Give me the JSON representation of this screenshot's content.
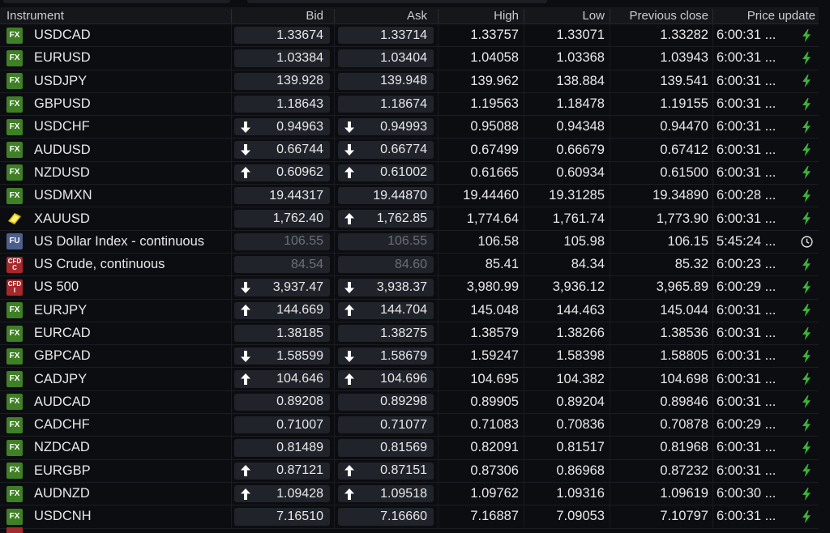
{
  "columns": {
    "instrument": "Instrument",
    "bid": "Bid",
    "ask": "Ask",
    "high": "High",
    "low": "Low",
    "prev_close": "Previous close",
    "price_update": "Price update"
  },
  "badge_labels": {
    "fx": "FX",
    "fu": "FU",
    "cfd_top": "CFD",
    "cfd_bottom": "C",
    "cfd_bottom_alt": "I"
  },
  "colors": {
    "accent_green": "#3db13a",
    "fx_badge": "#3f7f25",
    "cfd_badge": "#a5282b",
    "fu_badge": "#4a5f8c",
    "gold": "#e0c000"
  },
  "rows": [
    {
      "badge": "fx",
      "name": "USDCAD",
      "bid": "1.33674",
      "bid_dir": "",
      "ask": "1.33714",
      "ask_dir": "",
      "high": "1.33757",
      "low": "1.33071",
      "prev": "1.33282",
      "time": "6:00:31 ...",
      "status": "bolt"
    },
    {
      "badge": "fx",
      "name": "EURUSD",
      "bid": "1.03384",
      "bid_dir": "",
      "ask": "1.03404",
      "ask_dir": "",
      "high": "1.04058",
      "low": "1.03368",
      "prev": "1.03943",
      "time": "6:00:31 ...",
      "status": "bolt"
    },
    {
      "badge": "fx",
      "name": "USDJPY",
      "bid": "139.928",
      "bid_dir": "",
      "ask": "139.948",
      "ask_dir": "",
      "high": "139.962",
      "low": "138.884",
      "prev": "139.541",
      "time": "6:00:31 ...",
      "status": "bolt"
    },
    {
      "badge": "fx",
      "name": "GBPUSD",
      "bid": "1.18643",
      "bid_dir": "",
      "ask": "1.18674",
      "ask_dir": "",
      "high": "1.19563",
      "low": "1.18478",
      "prev": "1.19155",
      "time": "6:00:31 ...",
      "status": "bolt"
    },
    {
      "badge": "fx",
      "name": "USDCHF",
      "bid": "0.94963",
      "bid_dir": "down",
      "ask": "0.94993",
      "ask_dir": "down",
      "high": "0.95088",
      "low": "0.94348",
      "prev": "0.94470",
      "time": "6:00:31 ...",
      "status": "bolt"
    },
    {
      "badge": "fx",
      "name": "AUDUSD",
      "bid": "0.66744",
      "bid_dir": "down",
      "ask": "0.66774",
      "ask_dir": "down",
      "high": "0.67499",
      "low": "0.66679",
      "prev": "0.67412",
      "time": "6:00:31 ...",
      "status": "bolt"
    },
    {
      "badge": "fx",
      "name": "NZDUSD",
      "bid": "0.60962",
      "bid_dir": "up",
      "ask": "0.61002",
      "ask_dir": "up",
      "high": "0.61665",
      "low": "0.60934",
      "prev": "0.61500",
      "time": "6:00:31 ...",
      "status": "bolt"
    },
    {
      "badge": "fx",
      "name": "USDMXN",
      "bid": "19.44317",
      "bid_dir": "",
      "ask": "19.44870",
      "ask_dir": "",
      "high": "19.44460",
      "low": "19.31285",
      "prev": "19.34890",
      "time": "6:00:28 ...",
      "status": "bolt"
    },
    {
      "badge": "gold",
      "name": "XAUUSD",
      "bid": "1,762.40",
      "bid_dir": "",
      "ask": "1,762.85",
      "ask_dir": "up",
      "high": "1,774.64",
      "low": "1,761.74",
      "prev": "1,773.90",
      "time": "6:00:31 ...",
      "status": "bolt"
    },
    {
      "badge": "fu",
      "name": "US Dollar Index - continuous",
      "bid": "106.55",
      "bid_dir": "",
      "ask": "106.55",
      "ask_dir": "",
      "high": "106.58",
      "low": "105.98",
      "prev": "106.15",
      "time": "5:45:24 ...",
      "status": "clock",
      "stale": true
    },
    {
      "badge": "cfd",
      "cfd_sub": "C",
      "name": "US Crude, continuous",
      "bid": "84.54",
      "bid_dir": "",
      "ask": "84.60",
      "ask_dir": "",
      "high": "85.41",
      "low": "84.34",
      "prev": "85.32",
      "time": "6:00:23 ...",
      "status": "bolt",
      "stale": true
    },
    {
      "badge": "cfd",
      "cfd_sub": "I",
      "name": "US 500",
      "bid": "3,937.47",
      "bid_dir": "down",
      "ask": "3,938.37",
      "ask_dir": "down",
      "high": "3,980.99",
      "low": "3,936.12",
      "prev": "3,965.89",
      "time": "6:00:29 ...",
      "status": "bolt"
    },
    {
      "badge": "fx",
      "name": "EURJPY",
      "bid": "144.669",
      "bid_dir": "up",
      "ask": "144.704",
      "ask_dir": "up",
      "high": "145.048",
      "low": "144.463",
      "prev": "145.044",
      "time": "6:00:31 ...",
      "status": "bolt"
    },
    {
      "badge": "fx",
      "name": "EURCAD",
      "bid": "1.38185",
      "bid_dir": "",
      "ask": "1.38275",
      "ask_dir": "",
      "high": "1.38579",
      "low": "1.38266",
      "prev": "1.38536",
      "time": "6:00:31 ...",
      "status": "bolt"
    },
    {
      "badge": "fx",
      "name": "GBPCAD",
      "bid": "1.58599",
      "bid_dir": "down",
      "ask": "1.58679",
      "ask_dir": "down",
      "high": "1.59247",
      "low": "1.58398",
      "prev": "1.58805",
      "time": "6:00:31 ...",
      "status": "bolt"
    },
    {
      "badge": "fx",
      "name": "CADJPY",
      "bid": "104.646",
      "bid_dir": "up",
      "ask": "104.696",
      "ask_dir": "up",
      "high": "104.695",
      "low": "104.382",
      "prev": "104.698",
      "time": "6:00:31 ...",
      "status": "bolt"
    },
    {
      "badge": "fx",
      "name": "AUDCAD",
      "bid": "0.89208",
      "bid_dir": "",
      "ask": "0.89298",
      "ask_dir": "",
      "high": "0.89905",
      "low": "0.89204",
      "prev": "0.89846",
      "time": "6:00:31 ...",
      "status": "bolt"
    },
    {
      "badge": "fx",
      "name": "CADCHF",
      "bid": "0.71007",
      "bid_dir": "",
      "ask": "0.71077",
      "ask_dir": "",
      "high": "0.71083",
      "low": "0.70836",
      "prev": "0.70878",
      "time": "6:00:29 ...",
      "status": "bolt"
    },
    {
      "badge": "fx",
      "name": "NZDCAD",
      "bid": "0.81489",
      "bid_dir": "",
      "ask": "0.81569",
      "ask_dir": "",
      "high": "0.82091",
      "low": "0.81517",
      "prev": "0.81968",
      "time": "6:00:31 ...",
      "status": "bolt"
    },
    {
      "badge": "fx",
      "name": "EURGBP",
      "bid": "0.87121",
      "bid_dir": "up",
      "ask": "0.87151",
      "ask_dir": "up",
      "high": "0.87306",
      "low": "0.86968",
      "prev": "0.87232",
      "time": "6:00:31 ...",
      "status": "bolt"
    },
    {
      "badge": "fx",
      "name": "AUDNZD",
      "bid": "1.09428",
      "bid_dir": "up",
      "ask": "1.09518",
      "ask_dir": "up",
      "high": "1.09762",
      "low": "1.09316",
      "prev": "1.09619",
      "time": "6:00:30 ...",
      "status": "bolt"
    },
    {
      "badge": "fx",
      "name": "USDCNH",
      "bid": "7.16510",
      "bid_dir": "",
      "ask": "7.16660",
      "ask_dir": "",
      "high": "7.16887",
      "low": "7.09053",
      "prev": "7.10797",
      "time": "6:00:31 ...",
      "status": "bolt"
    }
  ]
}
